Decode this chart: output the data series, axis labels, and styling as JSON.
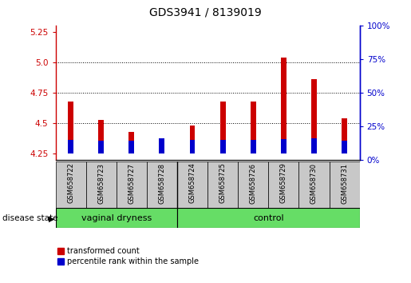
{
  "title": "GDS3941 / 8139019",
  "samples": [
    "GSM658722",
    "GSM658723",
    "GSM658727",
    "GSM658728",
    "GSM658724",
    "GSM658725",
    "GSM658726",
    "GSM658729",
    "GSM658730",
    "GSM658731"
  ],
  "red_tops": [
    4.68,
    4.53,
    4.43,
    4.32,
    4.48,
    4.68,
    4.68,
    5.04,
    4.86,
    4.54
  ],
  "blue_tops": [
    4.365,
    4.36,
    4.355,
    4.375,
    4.362,
    4.362,
    4.362,
    4.372,
    4.378,
    4.355
  ],
  "baseline": 4.25,
  "ylim_left": [
    4.2,
    5.3
  ],
  "yticks_left": [
    4.25,
    4.5,
    4.75,
    5.0,
    5.25
  ],
  "ylim_right": [
    0,
    100
  ],
  "yticks_right": [
    0,
    25,
    50,
    75,
    100
  ],
  "ytick_labels_right": [
    "0%",
    "25%",
    "50%",
    "75%",
    "100%"
  ],
  "group_divider": 4,
  "bar_width": 0.18,
  "blue_bar_width": 0.18,
  "red_color": "#CC0000",
  "blue_color": "#0000CC",
  "bg_color": "white",
  "legend_red": "transformed count",
  "legend_blue": "percentile rank within the sample",
  "disease_state_label": "disease state",
  "sample_box_color": "#C8C8C8",
  "green_color": "#66DD66",
  "title_fontsize": 10,
  "tick_fontsize": 7.5,
  "sample_fontsize": 6,
  "group_fontsize": 8,
  "legend_fontsize": 7,
  "disease_fontsize": 7.5
}
